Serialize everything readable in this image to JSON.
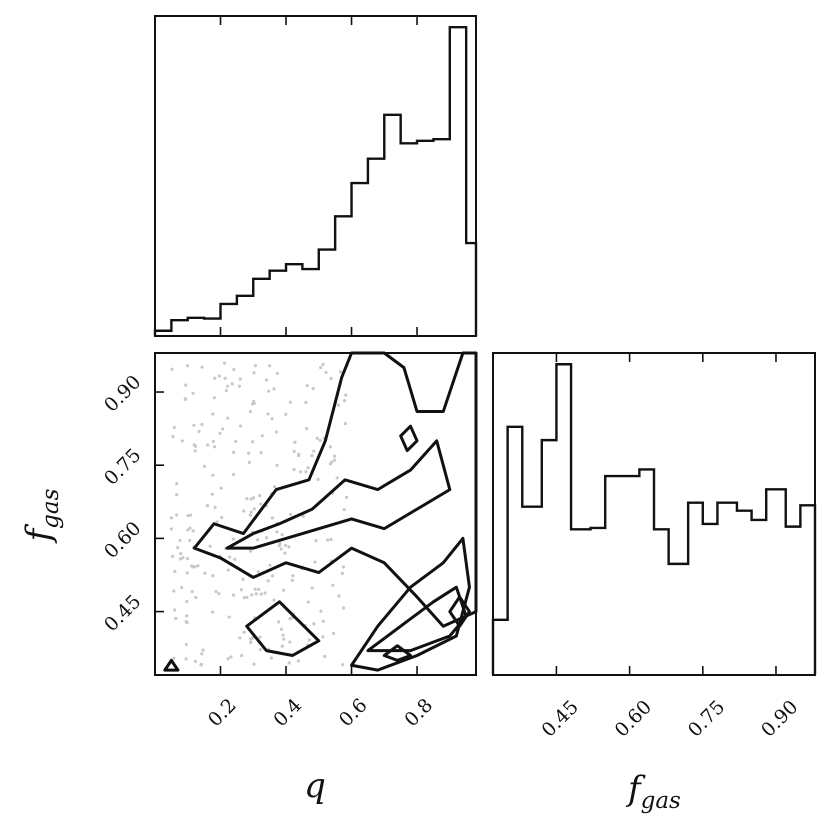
{
  "chart_data": [
    {
      "panel": "q-histogram",
      "type": "histogram",
      "xlabel": "q",
      "x_range": [
        0.0,
        0.98
      ],
      "bin_edges": [
        0.0,
        0.05,
        0.1,
        0.15,
        0.2,
        0.25,
        0.3,
        0.35,
        0.4,
        0.45,
        0.5,
        0.55,
        0.6,
        0.65,
        0.7,
        0.75,
        0.8,
        0.85,
        0.9,
        0.95,
        0.98
      ],
      "counts": [
        4,
        17,
        20,
        19,
        37,
        47,
        68,
        78,
        86,
        80,
        104,
        145,
        186,
        216,
        270,
        235,
        238,
        240,
        378,
        112
      ],
      "x_ticks": [
        "0.2",
        "0.4",
        "0.6",
        "0.8"
      ],
      "x_tick_values": [
        0.2,
        0.4,
        0.6,
        0.8
      ]
    },
    {
      "panel": "fgas-vs-q",
      "type": "contour",
      "xlabel": "q",
      "ylabel": "f_gas",
      "x_range": [
        0.0,
        0.98
      ],
      "y_range": [
        0.32,
        0.98
      ],
      "x_ticks": [
        "0.2",
        "0.4",
        "0.6",
        "0.8"
      ],
      "x_tick_values": [
        0.2,
        0.4,
        0.6,
        0.8
      ],
      "y_ticks": [
        "0.45",
        "0.60",
        "0.75",
        "0.90"
      ],
      "y_tick_values": [
        0.45,
        0.6,
        0.75,
        0.9
      ],
      "contour_levels": [
        [
          [
            0.12,
            0.58
          ],
          [
            0.18,
            0.63
          ],
          [
            0.27,
            0.61
          ],
          [
            0.37,
            0.7
          ],
          [
            0.47,
            0.72
          ],
          [
            0.52,
            0.8
          ],
          [
            0.57,
            0.93
          ],
          [
            0.6,
            0.98
          ],
          [
            0.7,
            0.98
          ],
          [
            0.76,
            0.95
          ],
          [
            0.8,
            0.86
          ],
          [
            0.88,
            0.86
          ],
          [
            0.94,
            0.98
          ],
          [
            0.98,
            0.98
          ],
          [
            0.98,
            0.45
          ],
          [
            0.88,
            0.42
          ],
          [
            0.8,
            0.48
          ],
          [
            0.7,
            0.55
          ],
          [
            0.6,
            0.58
          ],
          [
            0.5,
            0.53
          ],
          [
            0.4,
            0.55
          ],
          [
            0.3,
            0.52
          ],
          [
            0.2,
            0.56
          ],
          [
            0.12,
            0.58
          ]
        ],
        [
          [
            0.28,
            0.42
          ],
          [
            0.38,
            0.47
          ],
          [
            0.5,
            0.39
          ],
          [
            0.42,
            0.36
          ],
          [
            0.34,
            0.37
          ],
          [
            0.28,
            0.42
          ]
        ],
        [
          [
            0.03,
            0.33
          ],
          [
            0.05,
            0.35
          ],
          [
            0.07,
            0.33
          ],
          [
            0.03,
            0.33
          ]
        ],
        [
          [
            0.6,
            0.34
          ],
          [
            0.68,
            0.42
          ],
          [
            0.78,
            0.5
          ],
          [
            0.88,
            0.55
          ],
          [
            0.94,
            0.6
          ],
          [
            0.96,
            0.5
          ],
          [
            0.92,
            0.4
          ],
          [
            0.8,
            0.36
          ],
          [
            0.68,
            0.33
          ],
          [
            0.6,
            0.34
          ]
        ]
      ],
      "inner_contours": [
        [
          [
            0.22,
            0.58
          ],
          [
            0.3,
            0.61
          ],
          [
            0.38,
            0.63
          ],
          [
            0.48,
            0.66
          ],
          [
            0.58,
            0.72
          ],
          [
            0.68,
            0.7
          ],
          [
            0.78,
            0.74
          ],
          [
            0.86,
            0.8
          ],
          [
            0.9,
            0.7
          ],
          [
            0.8,
            0.66
          ],
          [
            0.7,
            0.62
          ],
          [
            0.6,
            0.64
          ],
          [
            0.5,
            0.62
          ],
          [
            0.4,
            0.6
          ],
          [
            0.3,
            0.58
          ],
          [
            0.22,
            0.58
          ]
        ],
        [
          [
            0.65,
            0.37
          ],
          [
            0.75,
            0.42
          ],
          [
            0.85,
            0.47
          ],
          [
            0.92,
            0.5
          ],
          [
            0.95,
            0.44
          ],
          [
            0.9,
            0.4
          ],
          [
            0.78,
            0.37
          ],
          [
            0.65,
            0.37
          ]
        ],
        [
          [
            0.7,
            0.36
          ],
          [
            0.74,
            0.38
          ],
          [
            0.78,
            0.36
          ],
          [
            0.74,
            0.35
          ],
          [
            0.7,
            0.36
          ]
        ],
        [
          [
            0.9,
            0.45
          ],
          [
            0.93,
            0.48
          ],
          [
            0.96,
            0.45
          ],
          [
            0.93,
            0.42
          ],
          [
            0.9,
            0.45
          ]
        ],
        [
          [
            0.75,
            0.81
          ],
          [
            0.78,
            0.83
          ],
          [
            0.8,
            0.8
          ],
          [
            0.77,
            0.78
          ],
          [
            0.75,
            0.81
          ]
        ]
      ]
    },
    {
      "panel": "fgas-histogram",
      "type": "histogram",
      "xlabel": "f_gas",
      "x_range": [
        0.32,
        0.98
      ],
      "bin_edges": [
        0.32,
        0.35,
        0.38,
        0.42,
        0.45,
        0.48,
        0.52,
        0.55,
        0.58,
        0.62,
        0.65,
        0.68,
        0.72,
        0.75,
        0.78,
        0.82,
        0.85,
        0.88,
        0.92,
        0.95,
        0.98
      ],
      "counts": [
        40,
        185,
        125,
        175,
        232,
        108,
        109,
        148,
        148,
        153,
        108,
        82,
        128,
        112,
        128,
        122,
        115,
        138,
        110,
        126
      ],
      "x_ticks": [
        "0.45",
        "0.60",
        "0.75",
        "0.90"
      ],
      "x_tick_values": [
        0.45,
        0.6,
        0.75,
        0.9
      ]
    }
  ],
  "labels": {
    "q": "q",
    "fgas_base": "f",
    "fgas_sub": "gas"
  }
}
